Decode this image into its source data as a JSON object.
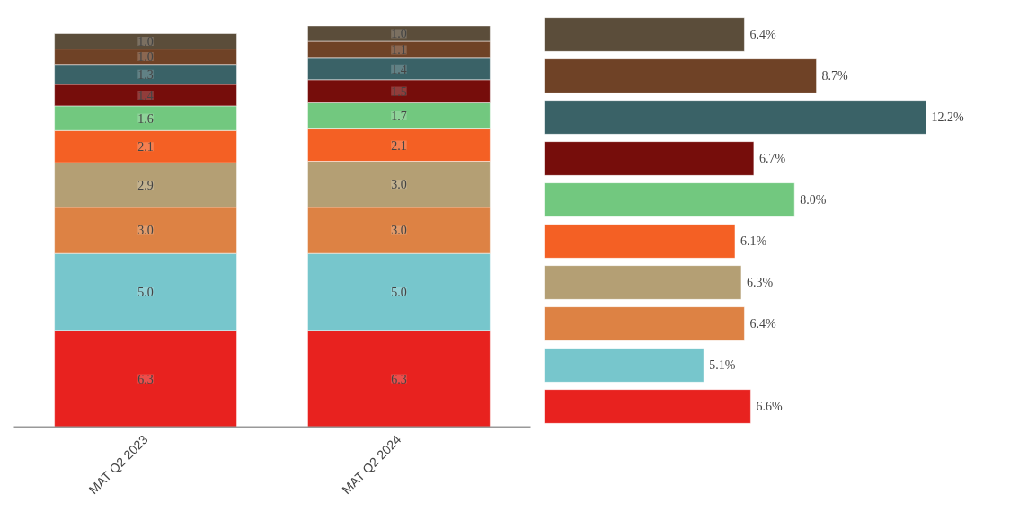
{
  "chart_data": [
    {
      "type": "bar",
      "stacked": true,
      "categories": [
        "MAT Q2 2023",
        "MAT Q2 2024"
      ],
      "grid": false,
      "series": [
        {
          "color": "#e8221f",
          "values": [
            6.3,
            6.3
          ],
          "value_labels": [
            "6.3",
            "6.3"
          ]
        },
        {
          "color": "#77c6cc",
          "values": [
            5.0,
            5.0
          ],
          "value_labels": [
            "5.0",
            "5.0"
          ]
        },
        {
          "color": "#dd8244",
          "values": [
            3.0,
            3.0
          ],
          "value_labels": [
            "3.0",
            "3.0"
          ]
        },
        {
          "color": "#b49f74",
          "values": [
            2.9,
            3.0
          ],
          "value_labels": [
            "2.9",
            "3.0"
          ]
        },
        {
          "color": "#f46024",
          "values": [
            2.1,
            2.1
          ],
          "value_labels": [
            "2.1",
            "2.1"
          ]
        },
        {
          "color": "#72c87f",
          "values": [
            1.6,
            1.7
          ],
          "value_labels": [
            "1.6",
            "1.7"
          ]
        },
        {
          "color": "#760d0b",
          "values": [
            1.4,
            1.5
          ],
          "value_labels": [
            "1.4",
            "1.5"
          ]
        },
        {
          "color": "#3a6267",
          "values": [
            1.3,
            1.4
          ],
          "value_labels": [
            "1.3",
            "1.4"
          ]
        },
        {
          "color": "#6f4226",
          "values": [
            1.0,
            1.1
          ],
          "value_labels": [
            "1.0",
            "1.1"
          ]
        },
        {
          "color": "#5b4d3a",
          "values": [
            1.0,
            1.0
          ],
          "value_labels": [
            "1.0",
            "1.0"
          ]
        }
      ]
    },
    {
      "type": "bar",
      "orientation": "horizontal",
      "grid": false,
      "tick_labels": false,
      "categories": [
        null,
        null,
        null,
        null,
        null,
        null,
        null,
        null,
        null,
        null
      ],
      "values": [
        6.4,
        8.7,
        12.2,
        6.7,
        8.0,
        6.1,
        6.3,
        6.4,
        5.1,
        6.6
      ],
      "value_labels": [
        "6.4%",
        "8.7%",
        "12.2%",
        "6.7%",
        "8.0%",
        "6.1%",
        "6.3%",
        "6.4%",
        "5.1%",
        "6.6%"
      ],
      "colors": [
        "#5b4d3a",
        "#6f4226",
        "#3a6267",
        "#760d0b",
        "#72c87f",
        "#f46024",
        "#b49f74",
        "#dd8244",
        "#77c6cc",
        "#e8221f"
      ]
    }
  ]
}
